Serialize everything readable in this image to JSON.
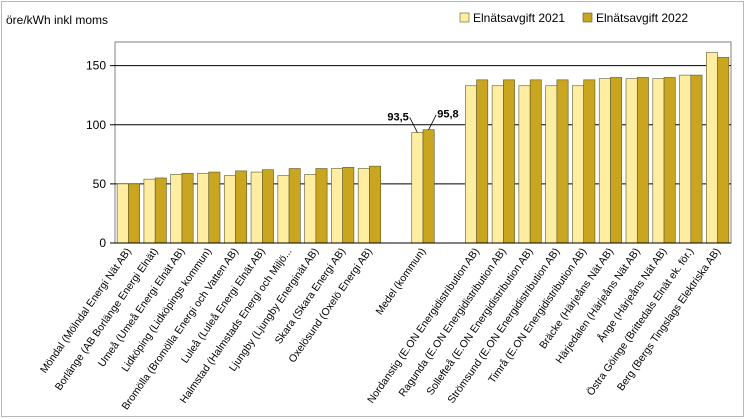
{
  "chart_data": {
    "type": "bar",
    "ylabel": "öre/kWh inkl moms",
    "ylim": [
      0,
      170
    ],
    "yticks": [
      0,
      50,
      100,
      150
    ],
    "grid": true,
    "legend_position": "top-right",
    "categories": [
      "Möndal (Mölndal Energi Nät AB)",
      "Borlänge (AB Borlänge Energi Elnät)",
      "Umeå (Umeå Energi Elnät AB)",
      "Lidköping (Lidköpings kommun)",
      "Bromölla (Bromölla Energi och Vatten AB)",
      "Luleå (Luleå Energi Elnät AB)",
      "Halmstad (Halmstads Energi och Miljö...",
      "Ljungby (Ljungby Energinät AB)",
      "Skara (Skara Energi AB)",
      "Oxelösund (Oxelö Energi AB)",
      "",
      "Medel (kommun)",
      "",
      "Nordanstig (E.ON Energidistribution AB)",
      "Ragunda (E.ON Energidistribution AB)",
      "Sollefteå (E.ON Energidistribution AB)",
      "Strömsund (E.ON Energidistribution AB)",
      "Timrå (E.ON Energidistribution AB)",
      "Bräcke (Härjeåns Nät AB)",
      "Härjedalen (Härjeåns Nät AB)",
      "Ånge (Härjeåns Nät AB)",
      "Östra Göinge (Brittedals Elnät ek. för.)",
      "Berg (Bergs Tingslags Elektriska AB)"
    ],
    "series": [
      {
        "name": "Elnätsavgift 2021",
        "color": "#ffeea2",
        "values": [
          50,
          54,
          58,
          59,
          57,
          60,
          57,
          58,
          63,
          63,
          null,
          93.5,
          null,
          133,
          133,
          133,
          133,
          133,
          139,
          139,
          139,
          142,
          161
        ]
      },
      {
        "name": "Elnätsavgift 2022",
        "color": "#c9a520",
        "values": [
          50,
          55,
          59,
          60,
          61,
          62,
          63,
          63,
          64,
          65,
          null,
          95.8,
          null,
          138,
          138,
          138,
          138,
          138,
          140,
          140,
          140,
          142,
          157
        ]
      }
    ],
    "annotations": [
      {
        "category": "Medel (kommun)",
        "series": "Elnätsavgift 2021",
        "text": "93,5"
      },
      {
        "category": "Medel (kommun)",
        "series": "Elnätsavgift 2022",
        "text": "95,8"
      }
    ]
  }
}
